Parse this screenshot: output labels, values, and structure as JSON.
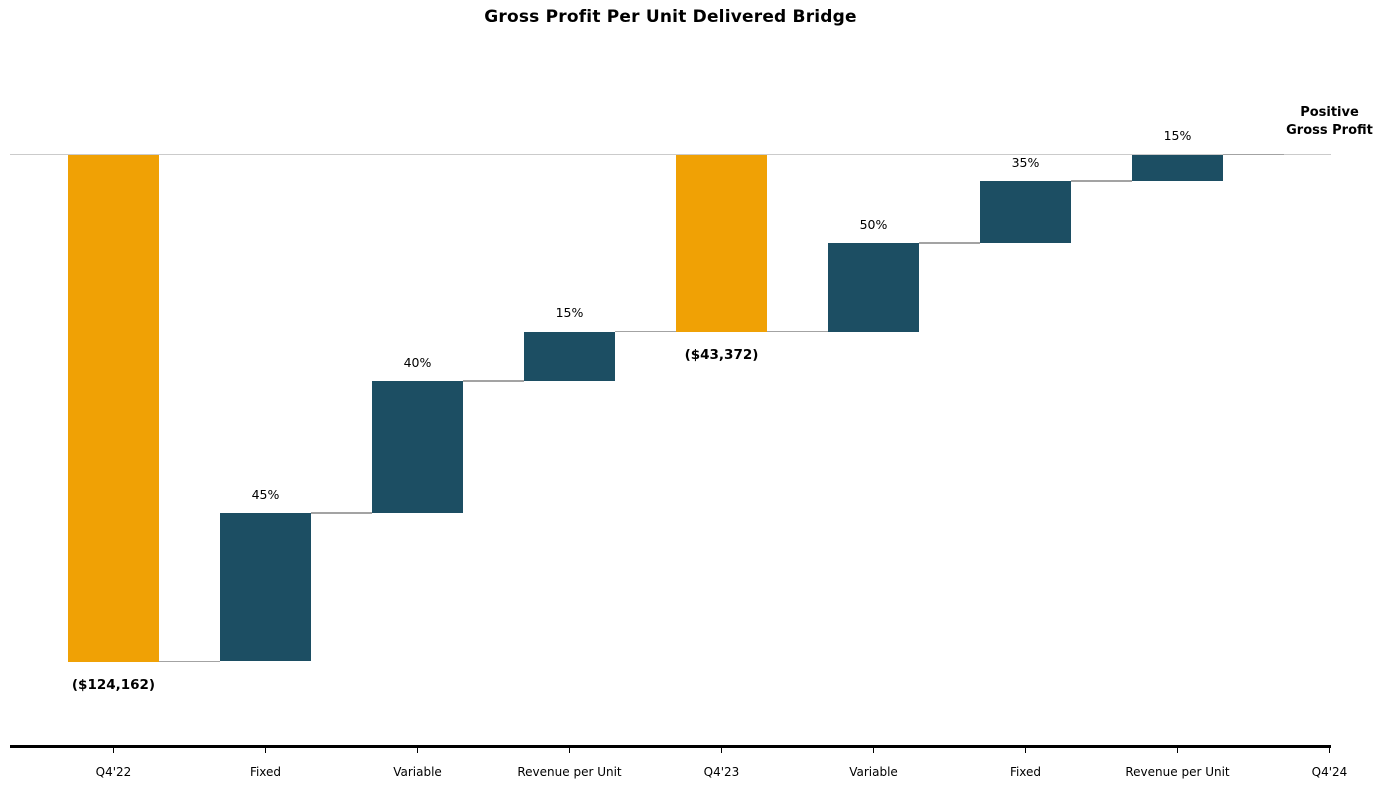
{
  "chart_data": {
    "type": "waterfall",
    "title": "Gross Profit Per Unit Delivered Bridge",
    "xlabel": "",
    "ylabel": "",
    "grid": false,
    "legend": "none",
    "ylim_dollars": [
      -145000,
      8000
    ],
    "categories": [
      "Q4'22",
      "Fixed",
      "Variable",
      "Revenue per Unit",
      "Q4'23",
      "Variable",
      "Fixed",
      "Revenue per Unit",
      "Q4'24"
    ],
    "bars": [
      {
        "category": "Q4'22",
        "kind": "total",
        "start": 0,
        "end": -124162,
        "label": "($124,162)",
        "label_side": "below"
      },
      {
        "category": "Fixed",
        "kind": "delta",
        "start": -124162,
        "end": -87806,
        "label": "45%",
        "label_side": "above"
      },
      {
        "category": "Variable",
        "kind": "delta",
        "start": -87806,
        "end": -55490,
        "label": "40%",
        "label_side": "above"
      },
      {
        "category": "Revenue per Unit",
        "kind": "delta",
        "start": -55490,
        "end": -43372,
        "label": "15%",
        "label_side": "above"
      },
      {
        "category": "Q4'23",
        "kind": "total",
        "start": 0,
        "end": -43372,
        "label": "($43,372)",
        "label_side": "below"
      },
      {
        "category": "Variable",
        "kind": "delta",
        "start": -43372,
        "end": -21686,
        "label": "50%",
        "label_side": "above"
      },
      {
        "category": "Fixed",
        "kind": "delta",
        "start": -21686,
        "end": -6506,
        "label": "35%",
        "label_side": "above"
      },
      {
        "category": "Revenue per Unit",
        "kind": "delta",
        "start": -6506,
        "end": 0,
        "label": "15%",
        "label_side": "above"
      },
      {
        "category": "Q4'24",
        "kind": "total",
        "start": 0,
        "end": 0,
        "label": "",
        "label_side": "none"
      }
    ],
    "annotation": {
      "lines": [
        "Positive",
        "Gross Profit"
      ]
    },
    "colors": {
      "total_bar": "#F0A105",
      "delta_bar": "#1C4E63",
      "zero_line": "#CBCBCB",
      "connector": "#A3A3A3",
      "axis": "#000000",
      "text": "#000000"
    }
  }
}
